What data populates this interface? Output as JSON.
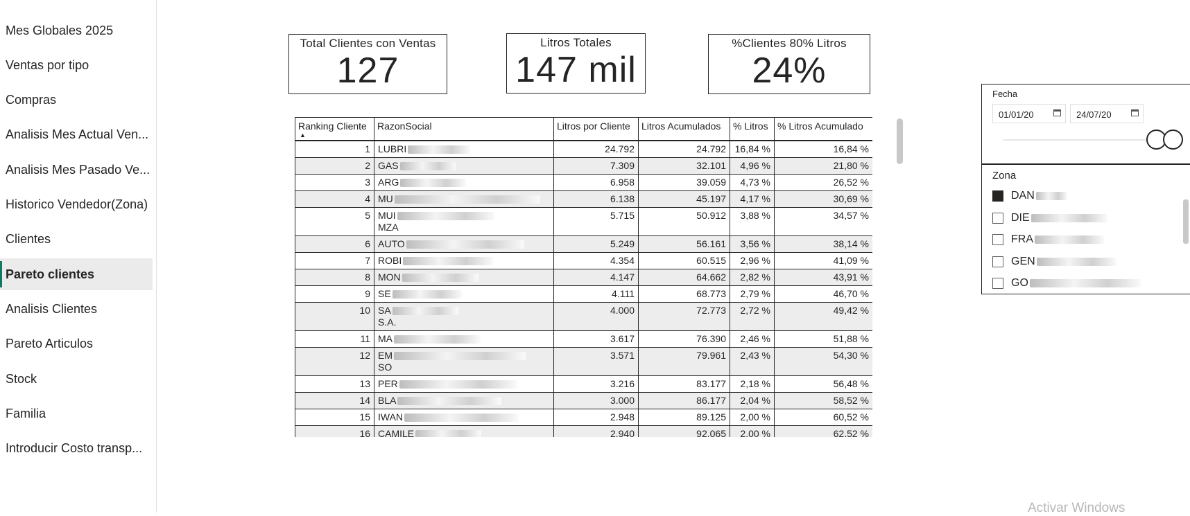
{
  "nav": {
    "items": [
      "Mes Globales 2025",
      "Ventas por tipo",
      "Compras",
      "Analisis Mes Actual Ven...",
      "Analisis Mes Pasado Ve...",
      "Historico Vendedor(Zona)",
      "Clientes",
      "Pareto clientes",
      "Analisis Clientes",
      "Pareto Articulos",
      "Stock",
      "Familia",
      "Introducir Costo transp..."
    ],
    "active": "Pareto clientes"
  },
  "cards": {
    "clientes": {
      "title": "Total Clientes con Ventas",
      "value": "127"
    },
    "litros": {
      "title": "Litros Totales",
      "value": "147 mil"
    },
    "pct": {
      "title": "%Clientes 80% Litros",
      "value": "24%"
    }
  },
  "table": {
    "headers": [
      "Ranking Cliente",
      "RazonSocial",
      "Litros por Cliente",
      "Litros Acumulados",
      "% Litros",
      "% Litros Acumulado"
    ],
    "rows": [
      {
        "rank": "1",
        "name": "LUBRI",
        "name2": "",
        "litros": "24.792",
        "acum": "24.792",
        "pct": "16,84 %",
        "pct_acum": "16,84 %"
      },
      {
        "rank": "2",
        "name": "GAS",
        "name2": "",
        "litros": "7.309",
        "acum": "32.101",
        "pct": "4,96 %",
        "pct_acum": "21,80 %"
      },
      {
        "rank": "3",
        "name": "ARG",
        "name2": "",
        "litros": "6.958",
        "acum": "39.059",
        "pct": "4,73 %",
        "pct_acum": "26,52 %"
      },
      {
        "rank": "4",
        "name": "MU",
        "name2": "",
        "litros": "6.138",
        "acum": "45.197",
        "pct": "4,17 %",
        "pct_acum": "30,69 %"
      },
      {
        "rank": "5",
        "name": "MUI",
        "name2": "MZA",
        "litros": "5.715",
        "acum": "50.912",
        "pct": "3,88 %",
        "pct_acum": "34,57 %"
      },
      {
        "rank": "6",
        "name": "AUTO",
        "name2": "",
        "litros": "5.249",
        "acum": "56.161",
        "pct": "3,56 %",
        "pct_acum": "38,14 %"
      },
      {
        "rank": "7",
        "name": "ROBI",
        "name2": "",
        "litros": "4.354",
        "acum": "60.515",
        "pct": "2,96 %",
        "pct_acum": "41,09 %"
      },
      {
        "rank": "8",
        "name": "MON",
        "name2": "",
        "litros": "4.147",
        "acum": "64.662",
        "pct": "2,82 %",
        "pct_acum": "43,91 %"
      },
      {
        "rank": "9",
        "name": "SE",
        "name2": "",
        "litros": "4.111",
        "acum": "68.773",
        "pct": "2,79 %",
        "pct_acum": "46,70 %"
      },
      {
        "rank": "10",
        "name": "SA",
        "name2": "S.A.",
        "litros": "4.000",
        "acum": "72.773",
        "pct": "2,72 %",
        "pct_acum": "49,42 %"
      },
      {
        "rank": "11",
        "name": "MA",
        "name2": "",
        "litros": "3.617",
        "acum": "76.390",
        "pct": "2,46 %",
        "pct_acum": "51,88 %"
      },
      {
        "rank": "12",
        "name": "EM",
        "name2": "SO",
        "litros": "3.571",
        "acum": "79.961",
        "pct": "2,43 %",
        "pct_acum": "54,30 %"
      },
      {
        "rank": "13",
        "name": "PER",
        "name2": "",
        "litros": "3.216",
        "acum": "83.177",
        "pct": "2,18 %",
        "pct_acum": "56,48 %"
      },
      {
        "rank": "14",
        "name": "BLA",
        "name2": "",
        "litros": "3.000",
        "acum": "86.177",
        "pct": "2,04 %",
        "pct_acum": "58,52 %"
      },
      {
        "rank": "15",
        "name": "IWAN",
        "name2": "",
        "litros": "2.948",
        "acum": "89.125",
        "pct": "2,00 %",
        "pct_acum": "60,52 %"
      },
      {
        "rank": "16",
        "name": "CAMILE",
        "name2": "",
        "litros": "2.940",
        "acum": "92.065",
        "pct": "2,00 %",
        "pct_acum": "62,52 %"
      }
    ]
  },
  "fecha": {
    "title": "Fecha",
    "from": "01/01/20",
    "to": "24/07/20"
  },
  "zona": {
    "title": "Zona",
    "items": [
      {
        "label": "DAN",
        "checked": true
      },
      {
        "label": "DIE",
        "checked": false
      },
      {
        "label": "FRA",
        "checked": false
      },
      {
        "label": "GEN",
        "checked": false
      },
      {
        "label": "GO",
        "checked": false
      }
    ]
  },
  "watermark": "Activar Windows"
}
